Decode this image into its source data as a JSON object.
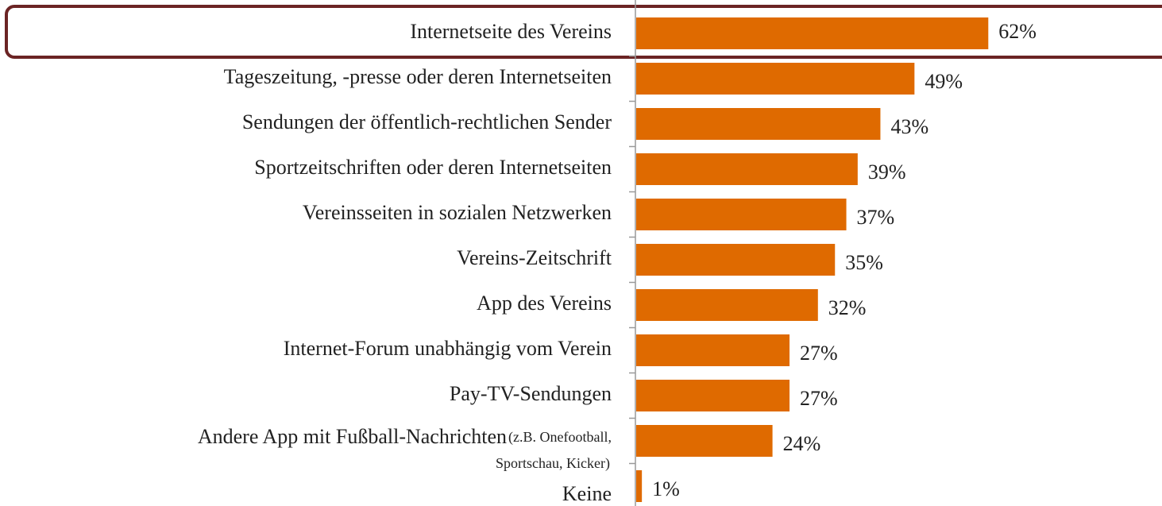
{
  "chart_data": {
    "type": "barh",
    "categories": [
      "Internetseite des Vereins",
      "Tageszeitung, -presse oder deren Internetseiten",
      "Sendungen der öffentlich-rechtlichen Sender",
      "Sportzeitschriften oder deren Internetseiten",
      "Vereinsseiten in sozialen Netzwerken",
      "Vereins-Zeitschrift",
      "App des Vereins",
      "Internet-Forum unabhängig vom Verein",
      "Pay-TV-Sendungen",
      "Andere App mit Fußball-Nachrichten",
      "Keine"
    ],
    "category_notes": [
      null,
      null,
      null,
      null,
      null,
      null,
      null,
      null,
      null,
      [
        "(z.B. Onefootball,",
        "Sportschau, Kicker)"
      ],
      null
    ],
    "values": [
      62,
      49,
      43,
      39,
      37,
      35,
      32,
      27,
      27,
      24,
      1
    ],
    "value_labels": [
      "62%",
      "49%",
      "43%",
      "39%",
      "37%",
      "35%",
      "32%",
      "27%",
      "27%",
      "24%",
      "1%"
    ],
    "color": "#df6a00"
  }
}
